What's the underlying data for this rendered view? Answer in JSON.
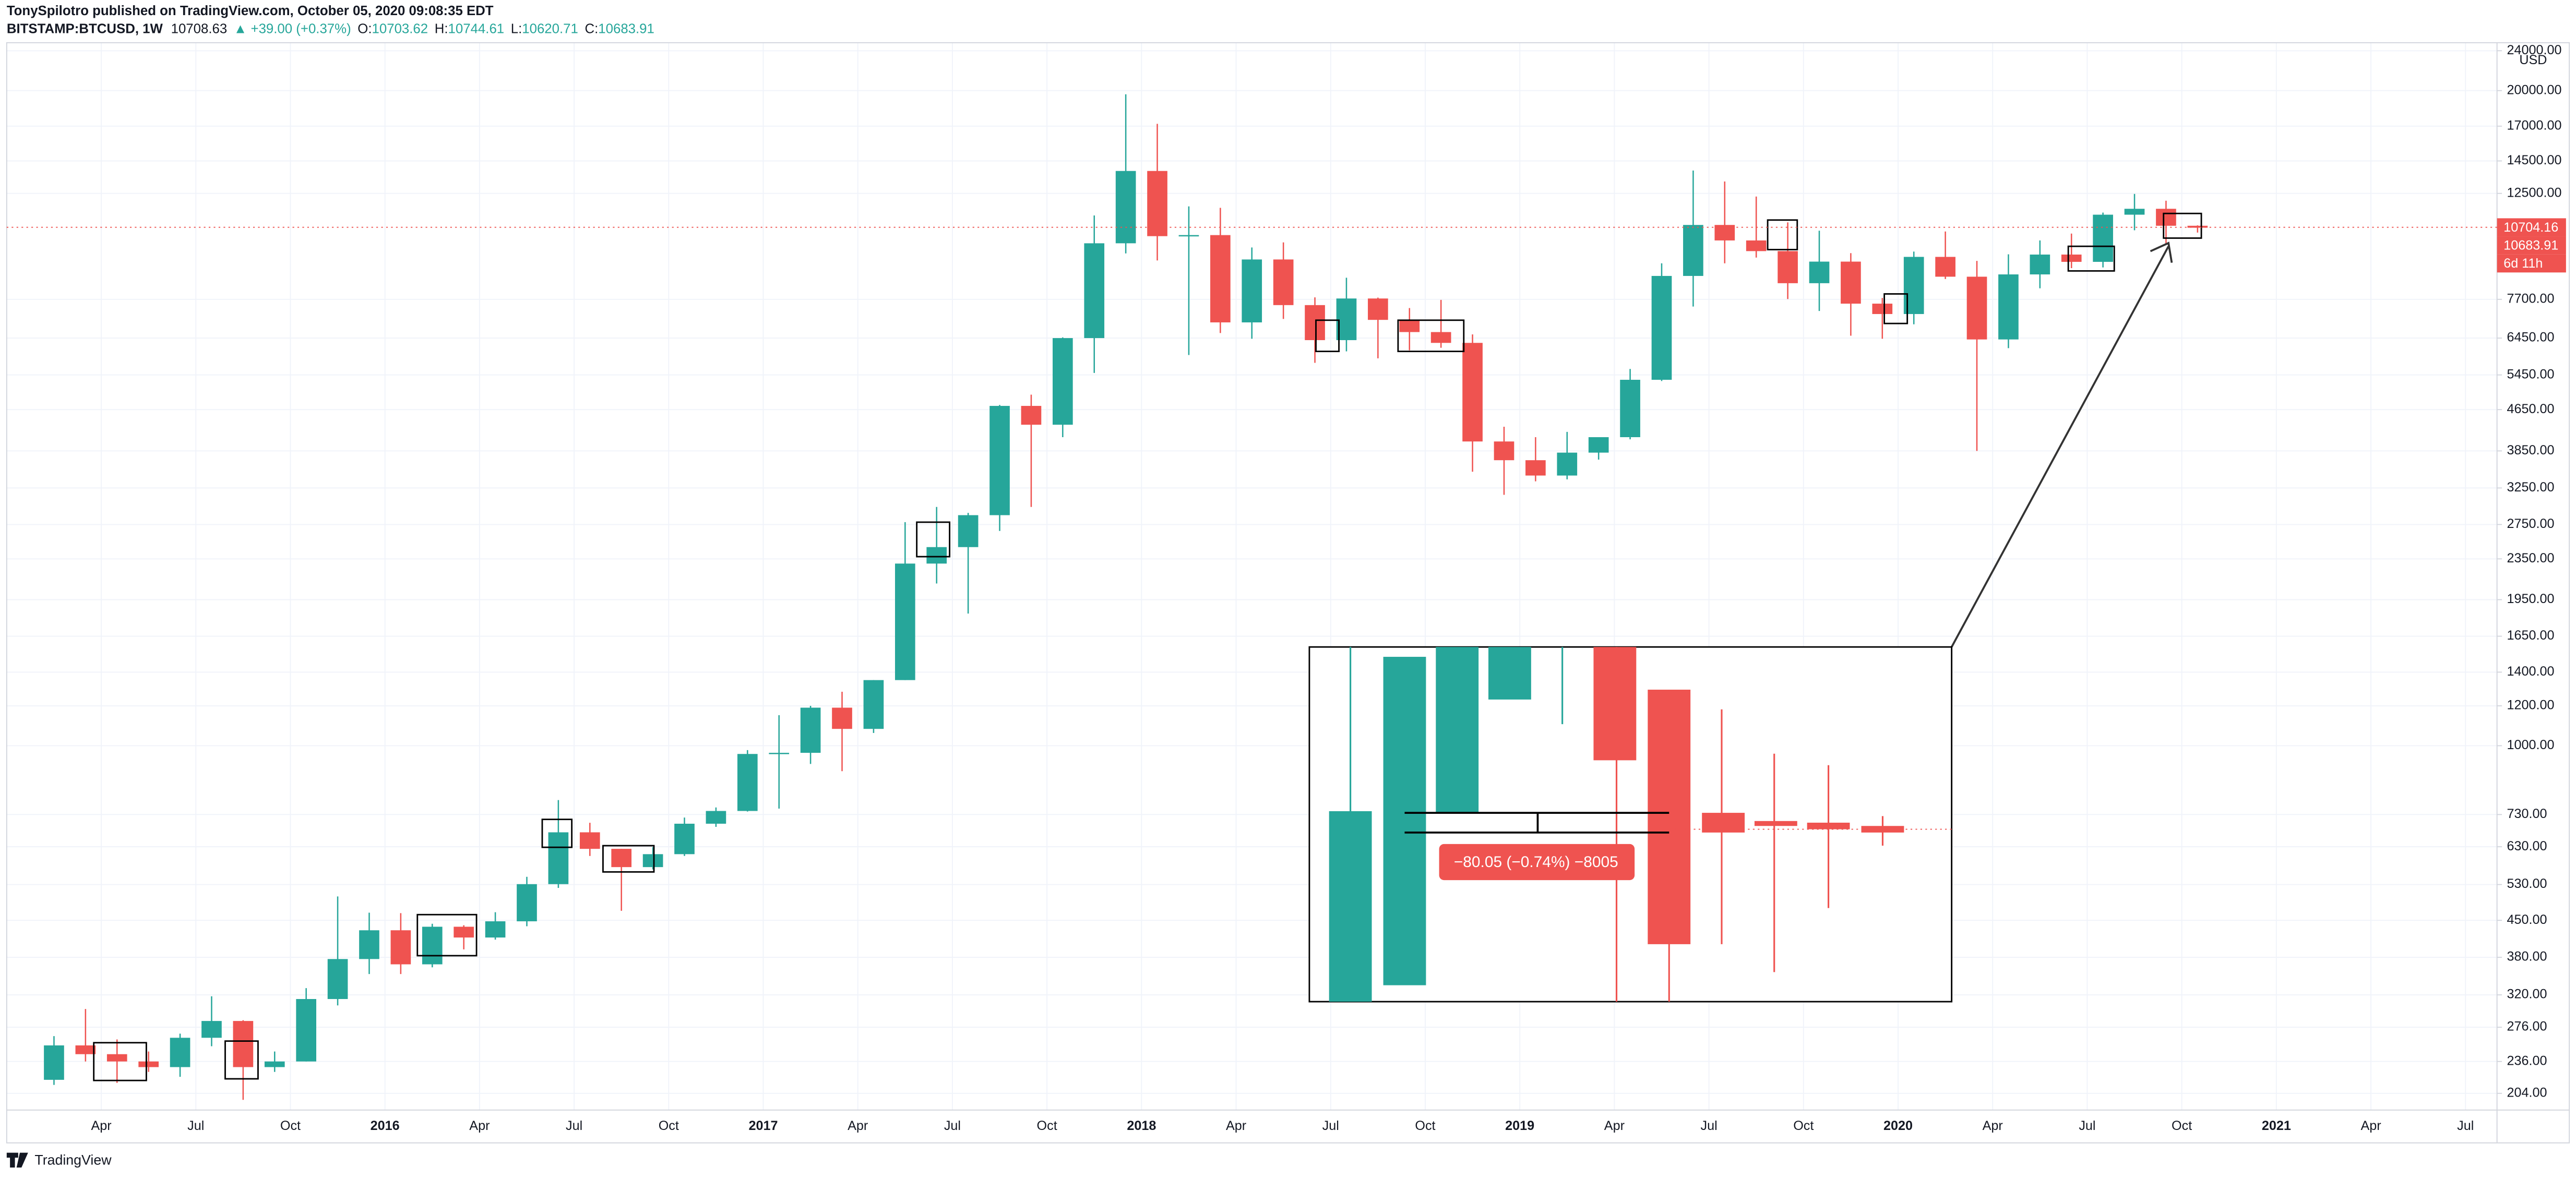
{
  "header": {
    "publisher": "TonySpilotro published on TradingView.com, October 05, 2020 09:08:35 EDT",
    "symbol": "BITSTAMP:BTCUSD, 1W",
    "last": "10708.63",
    "change": "▲ +39.00 (+0.37%)",
    "open_label": "O:",
    "open": "10703.62",
    "high_label": "H:",
    "high": "10744.61",
    "low_label": "L:",
    "low": "10620.71",
    "close_label": "C:",
    "close": "10683.91"
  },
  "footer": {
    "brand": "TradingView"
  },
  "chart_data": {
    "type": "candlestick",
    "currency": "USD",
    "up_color": "#26a69a",
    "down_color": "#ef5350",
    "log_scale": true,
    "grid": true,
    "x": [
      "2015-02",
      "2015-03",
      "2015-04",
      "2015-05",
      "2015-06",
      "2015-07",
      "2015-08",
      "2015-09",
      "2015-10",
      "2015-11",
      "2015-12",
      "2016-01",
      "2016-02",
      "2016-03",
      "2016-04",
      "2016-05",
      "2016-06",
      "2016-07",
      "2016-08",
      "2016-09",
      "2016-10",
      "2016-11",
      "2016-12",
      "2017-01",
      "2017-02",
      "2017-03",
      "2017-04",
      "2017-05",
      "2017-06",
      "2017-07",
      "2017-08",
      "2017-09",
      "2017-10",
      "2017-11",
      "2017-12",
      "2018-01",
      "2018-02",
      "2018-03",
      "2018-04",
      "2018-05",
      "2018-06",
      "2018-07",
      "2018-08",
      "2018-09",
      "2018-10",
      "2018-11",
      "2018-12",
      "2019-01",
      "2019-02",
      "2019-03",
      "2019-04",
      "2019-05",
      "2019-06",
      "2019-07",
      "2019-08",
      "2019-09",
      "2019-10",
      "2019-11",
      "2019-12",
      "2020-01",
      "2020-02",
      "2020-03",
      "2020-04",
      "2020-05",
      "2020-06",
      "2020-07",
      "2020-08",
      "2020-09",
      "2020-10"
    ],
    "open": [
      217,
      254,
      244,
      236,
      230,
      263,
      284,
      230,
      236,
      314,
      377,
      430,
      368,
      437,
      416,
      448,
      531,
      673,
      624,
      574,
      609,
      700,
      742,
      963,
      968,
      1190,
      1080,
      1350,
      2300,
      2480,
      2870,
      4730,
      4340,
      6450,
      9950,
      13850,
      10280,
      10330,
      6930,
      9240,
      7500,
      6390,
      7730,
      7010,
      6630,
      6310,
      4020,
      3690,
      3440,
      3820,
      4100,
      5330,
      8570,
      10820,
      10080,
      9600,
      8290,
      9150,
      7550,
      7200,
      9350,
      8540,
      6410,
      8630,
      9450,
      9140,
      11340,
      11650,
      10780
    ],
    "high": [
      265,
      300,
      261,
      247,
      268,
      318,
      285,
      247,
      330,
      502,
      466,
      465,
      443,
      440,
      467,
      549,
      780,
      703,
      624,
      629,
      720,
      754,
      980,
      1150,
      1200,
      1280,
      1350,
      2780,
      2980,
      2900,
      4750,
      4980,
      6470,
      11300,
      19666,
      17180,
      11780,
      11700,
      9760,
      9990,
      7770,
      8500,
      7760,
      7400,
      7680,
      6560,
      4300,
      4100,
      4200,
      4100,
      5600,
      9080,
      13880,
      13200,
      12320,
      10950,
      10540,
      9510,
      7750,
      9580,
      10500,
      9180,
      9460,
      10080,
      10400,
      11450,
      12470,
      12090,
      10800
    ],
    "low": [
      212,
      236,
      214,
      225,
      220,
      253,
      198,
      225,
      236,
      305,
      352,
      352,
      363,
      394,
      412,
      438,
      522,
      604,
      470,
      568,
      604,
      690,
      740,
      750,
      920,
      890,
      1060,
      1350,
      2100,
      1830,
      2670,
      2980,
      4100,
      5500,
      9500,
      9200,
      5970,
      6600,
      6430,
      7040,
      5760,
      6070,
      5880,
      6100,
      6170,
      3500,
      3150,
      3350,
      3380,
      3700,
      4060,
      5300,
      7450,
      9080,
      9320,
      7710,
      7300,
      6520,
      6430,
      6870,
      8450,
      3850,
      6160,
      8100,
      8880,
      8910,
      10560,
      9880,
      10450
    ],
    "close": [
      254,
      244,
      236,
      230,
      263,
      284,
      230,
      236,
      314,
      377,
      430,
      368,
      437,
      416,
      448,
      531,
      673,
      624,
      574,
      609,
      700,
      742,
      963,
      968,
      1190,
      1080,
      1350,
      2300,
      2480,
      2870,
      4730,
      4340,
      6450,
      9950,
      13850,
      10280,
      10330,
      6930,
      9240,
      7500,
      6390,
      7730,
      7010,
      6630,
      6310,
      4020,
      3690,
      3440,
      3820,
      4100,
      5330,
      8570,
      10820,
      10080,
      9600,
      8290,
      9150,
      7550,
      7200,
      9350,
      8540,
      6410,
      8630,
      9450,
      9140,
      11340,
      11650,
      10780,
      10684
    ],
    "xlim": [
      "2015-01",
      "2021-08"
    ],
    "xticks": [
      {
        "value": "2015-04",
        "label": "Apr"
      },
      {
        "value": "2015-07",
        "label": "Jul"
      },
      {
        "value": "2015-10",
        "label": "Oct"
      },
      {
        "value": "2016-01",
        "label": "2016"
      },
      {
        "value": "2016-04",
        "label": "Apr"
      },
      {
        "value": "2016-07",
        "label": "Jul"
      },
      {
        "value": "2016-10",
        "label": "Oct"
      },
      {
        "value": "2017-01",
        "label": "2017"
      },
      {
        "value": "2017-04",
        "label": "Apr"
      },
      {
        "value": "2017-07",
        "label": "Jul"
      },
      {
        "value": "2017-10",
        "label": "Oct"
      },
      {
        "value": "2018-01",
        "label": "2018"
      },
      {
        "value": "2018-04",
        "label": "Apr"
      },
      {
        "value": "2018-07",
        "label": "Jul"
      },
      {
        "value": "2018-10",
        "label": "Oct"
      },
      {
        "value": "2019-01",
        "label": "2019"
      },
      {
        "value": "2019-04",
        "label": "Apr"
      },
      {
        "value": "2019-07",
        "label": "Jul"
      },
      {
        "value": "2019-10",
        "label": "Oct"
      },
      {
        "value": "2020-01",
        "label": "2020"
      },
      {
        "value": "2020-04",
        "label": "Apr"
      },
      {
        "value": "2020-07",
        "label": "Jul"
      },
      {
        "value": "2020-10",
        "label": "Oct"
      },
      {
        "value": "2021-01",
        "label": "2021"
      },
      {
        "value": "2021-04",
        "label": "Apr"
      },
      {
        "value": "2021-07",
        "label": "Jul"
      }
    ],
    "ylim": [
      189,
      24900
    ],
    "yticks": [
      {
        "value": 204,
        "label": "204.00"
      },
      {
        "value": 236,
        "label": "236.00"
      },
      {
        "value": 276,
        "label": "276.00"
      },
      {
        "value": 320,
        "label": "320.00"
      },
      {
        "value": 380,
        "label": "380.00"
      },
      {
        "value": 450,
        "label": "450.00"
      },
      {
        "value": 530,
        "label": "530.00"
      },
      {
        "value": 630,
        "label": "630.00"
      },
      {
        "value": 730,
        "label": "730.00"
      },
      {
        "value": 1000,
        "label": "1000.00"
      },
      {
        "value": 1200,
        "label": "1200.00"
      },
      {
        "value": 1400,
        "label": "1400.00"
      },
      {
        "value": 1650,
        "label": "1650.00"
      },
      {
        "value": 1950,
        "label": "1950.00"
      },
      {
        "value": 2350,
        "label": "2350.00"
      },
      {
        "value": 2750,
        "label": "2750.00"
      },
      {
        "value": 3250,
        "label": "3250.00"
      },
      {
        "value": 3850,
        "label": "3850.00"
      },
      {
        "value": 4650,
        "label": "4650.00"
      },
      {
        "value": 5450,
        "label": "5450.00"
      },
      {
        "value": 6450,
        "label": "6450.00"
      },
      {
        "value": 7700,
        "label": "7700.00"
      },
      {
        "value": 12500,
        "label": "12500.00"
      },
      {
        "value": 14500,
        "label": "14500.00"
      },
      {
        "value": 17000,
        "label": "17000.00"
      },
      {
        "value": 20000,
        "label": "20000.00"
      },
      {
        "value": 24000,
        "label": "24000.00"
      }
    ],
    "last_price": 10704.16,
    "close_price": 10683.91,
    "countdown": "6d 11h",
    "measure_label": "−80.05 (−0.74%) −8005"
  }
}
